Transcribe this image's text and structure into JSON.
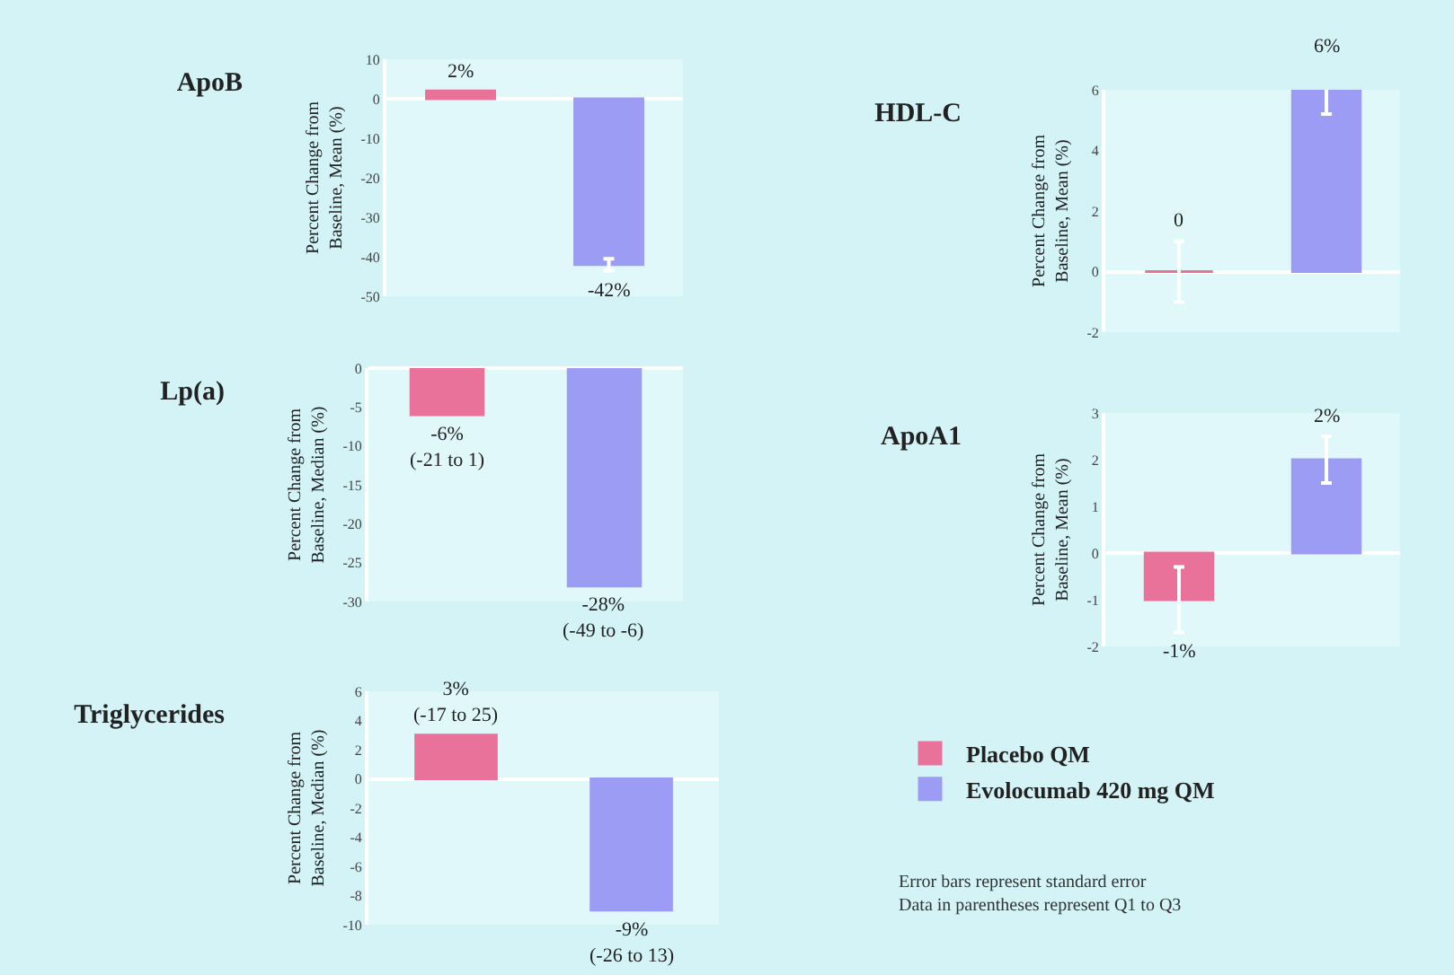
{
  "chart_data": [
    {
      "type": "bar",
      "title": "ApoB",
      "ylabel": "Percent Change from\nBaseline, Mean (%)",
      "categories": [
        null,
        null
      ],
      "ylim": [
        -50,
        10
      ],
      "yticks": [
        10,
        0,
        -10,
        -20,
        -30,
        -40,
        -50
      ],
      "series": [
        {
          "color": "#e8729a",
          "values": [
            2,
            null
          ],
          "value_labels": [
            "2%",
            null
          ]
        },
        {
          "color": "#9c9cf4",
          "values": [
            null,
            -42
          ],
          "errors": [
            null,
            1.5
          ],
          "value_labels": [
            null,
            "-42%"
          ]
        }
      ]
    },
    {
      "type": "bar",
      "title": "HDL-C",
      "ylabel": "Percent Change from\nBaseline, Mean (%)",
      "categories": [
        null,
        null
      ],
      "ylim": [
        -2,
        6
      ],
      "yticks": [
        6,
        4,
        2,
        0,
        -2
      ],
      "series": [
        {
          "color": "#e8729a",
          "values": [
            0,
            null
          ],
          "errors": [
            1,
            null
          ],
          "value_labels": [
            "0",
            null
          ]
        },
        {
          "color": "#9c9cf4",
          "values": [
            null,
            6
          ],
          "errors": [
            null,
            0.8
          ],
          "value_labels": [
            null,
            "6%"
          ]
        }
      ]
    },
    {
      "type": "bar",
      "title": "Lp(a)",
      "ylabel": "Percent Change from\nBaseline, Median (%)",
      "categories": [
        null,
        null
      ],
      "ylim": [
        -30,
        0
      ],
      "yticks": [
        0,
        -5,
        -10,
        -15,
        -20,
        -25,
        -30
      ],
      "series": [
        {
          "color": "#e8729a",
          "values": [
            -6,
            null
          ],
          "value_labels": [
            "-6%\n(-21 to 1)",
            null
          ]
        },
        {
          "color": "#9c9cf4",
          "values": [
            null,
            -28
          ],
          "value_labels": [
            null,
            "-28%\n(-49 to -6)"
          ]
        }
      ]
    },
    {
      "type": "bar",
      "title": "ApoA1",
      "ylabel": "Percent Change from\nBaseline, Mean (%)",
      "categories": [
        null,
        null
      ],
      "ylim": [
        -2,
        3
      ],
      "yticks": [
        3,
        2,
        1,
        0,
        -1,
        -2
      ],
      "series": [
        {
          "color": "#e8729a",
          "values": [
            -1,
            null
          ],
          "errors": [
            0.7,
            null
          ],
          "value_labels": [
            "-1%",
            null
          ]
        },
        {
          "color": "#9c9cf4",
          "values": [
            null,
            2
          ],
          "errors": [
            null,
            0.5
          ],
          "value_labels": [
            null,
            "2%"
          ]
        }
      ]
    },
    {
      "type": "bar",
      "title": "Triglycerides",
      "ylabel": "Percent Change from\nBaseline, Median (%)",
      "categories": [
        null,
        null
      ],
      "ylim": [
        -10,
        6
      ],
      "yticks": [
        6,
        4,
        2,
        0,
        -2,
        -4,
        -6,
        -8,
        -10
      ],
      "legend": "right",
      "annotations": [
        "Error bars represent standard error",
        "Data in parentheses represent Q1 to Q3"
      ],
      "series": [
        {
          "name": "Placebo QM",
          "color": "#e8729a",
          "values": [
            3,
            null
          ],
          "value_labels": [
            "3%\n(-17 to 25)",
            null
          ]
        },
        {
          "name": "Evolocumab 420 mg QM",
          "color": "#9c9cf4",
          "values": [
            null,
            -9
          ],
          "value_labels": [
            null,
            "-9%\n(-26 to 13)"
          ]
        }
      ]
    }
  ]
}
